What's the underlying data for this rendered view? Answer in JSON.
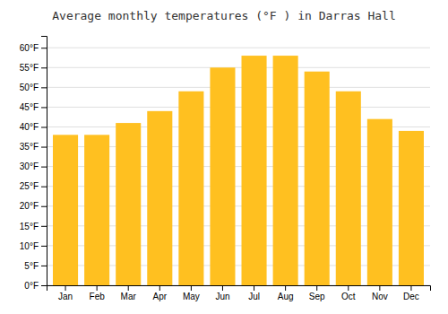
{
  "chart_data": {
    "type": "bar",
    "title": "Average monthly temperatures (°F ) in Darras Hall",
    "categories": [
      "Jan",
      "Feb",
      "Mar",
      "Apr",
      "May",
      "Jun",
      "Jul",
      "Aug",
      "Sep",
      "Oct",
      "Nov",
      "Dec"
    ],
    "values": [
      38,
      38,
      41,
      44,
      49,
      55,
      58,
      58,
      54,
      49,
      42,
      39
    ],
    "color": "#FFC020",
    "ylim": [
      0,
      63
    ],
    "yticks": [
      {
        "value": 0,
        "label": "0°F"
      },
      {
        "value": 5,
        "label": "5°F"
      },
      {
        "value": 10,
        "label": "10°F"
      },
      {
        "value": 15,
        "label": "15°F"
      },
      {
        "value": 20,
        "label": "20°F"
      },
      {
        "value": 25,
        "label": "25°F"
      },
      {
        "value": 30,
        "label": "30°F"
      },
      {
        "value": 35,
        "label": "35°F"
      },
      {
        "value": 40,
        "label": "40°F"
      },
      {
        "value": 45,
        "label": "45°F"
      },
      {
        "value": 50,
        "label": "50°F"
      },
      {
        "value": 55,
        "label": "55°F"
      },
      {
        "value": 60,
        "label": "60°F"
      }
    ],
    "grid": true
  }
}
